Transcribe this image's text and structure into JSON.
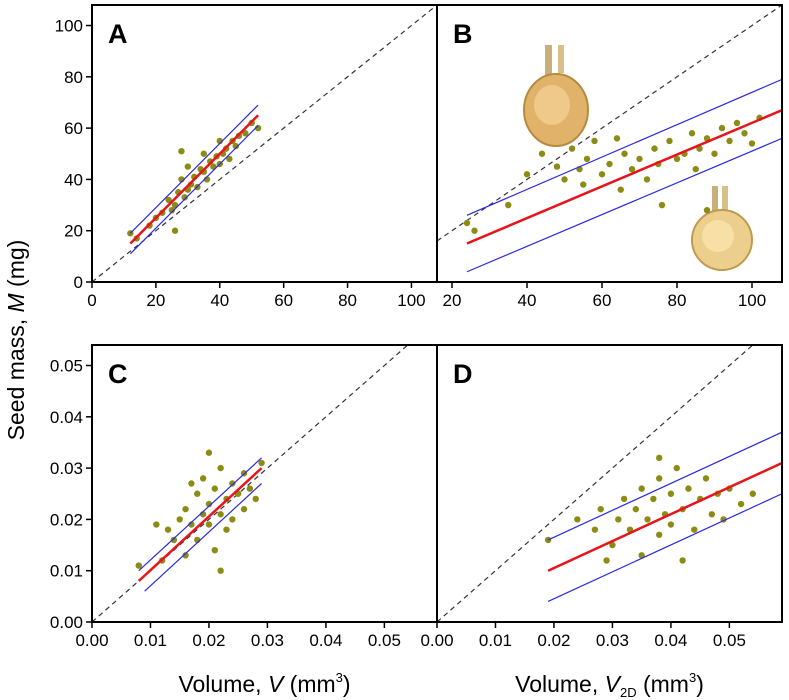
{
  "figure": {
    "ylabel": [
      "Seed mass, ",
      "M",
      " (mg)"
    ]
  },
  "chart_data": [
    {
      "type": "scatter",
      "title": "A",
      "xlim": [
        0,
        108
      ],
      "ylim": [
        0,
        108
      ],
      "xticks": [
        0,
        20,
        40,
        60,
        80,
        100
      ],
      "yticks": [
        0,
        20,
        40,
        60,
        80,
        100
      ],
      "color": "#8c8c14",
      "x": [
        12,
        14,
        18,
        20,
        22,
        24,
        25,
        26,
        27,
        28,
        28,
        29,
        30,
        31,
        32,
        33,
        34,
        35,
        36,
        37,
        38,
        39,
        40,
        41,
        42,
        43,
        44,
        45,
        46,
        48,
        50,
        52,
        30,
        26,
        35,
        40
      ],
      "values": [
        19,
        17,
        22,
        25,
        27,
        32,
        28,
        30,
        35,
        40,
        51,
        33,
        36,
        38,
        41,
        37,
        44,
        43,
        40,
        47,
        45,
        49,
        46,
        50,
        52,
        48,
        55,
        53,
        57,
        58,
        62,
        60,
        45,
        20,
        50,
        55
      ],
      "fit": {
        "color": "#e8141b",
        "x": [
          12,
          52
        ],
        "y": [
          15,
          65
        ]
      },
      "bounds": [
        {
          "color": "#2a2ae0",
          "x": [
            12,
            52
          ],
          "y": [
            19,
            69
          ]
        },
        {
          "color": "#2a2ae0",
          "x": [
            12,
            52
          ],
          "y": [
            11,
            61
          ]
        }
      ]
    },
    {
      "type": "scatter",
      "title": "B",
      "xlim": [
        16,
        108
      ],
      "ylim": [
        0,
        108
      ],
      "xticks": [
        20,
        40,
        60,
        80,
        100
      ],
      "color": "#8c8c14",
      "x": [
        24,
        26,
        35,
        40,
        44,
        48,
        50,
        52,
        55,
        56,
        58,
        60,
        62,
        65,
        66,
        68,
        70,
        72,
        74,
        75,
        78,
        80,
        82,
        84,
        85,
        86,
        88,
        90,
        92,
        94,
        96,
        98,
        100,
        102,
        76,
        88,
        64,
        54
      ],
      "values": [
        23,
        20,
        30,
        42,
        50,
        45,
        40,
        52,
        38,
        48,
        55,
        42,
        46,
        36,
        50,
        44,
        48,
        40,
        52,
        46,
        55,
        48,
        50,
        58,
        44,
        52,
        56,
        50,
        60,
        55,
        62,
        58,
        54,
        64,
        30,
        28,
        56,
        44
      ],
      "fit": {
        "color": "#e8141b",
        "x": [
          24,
          108
        ],
        "y": [
          15,
          67
        ]
      },
      "bounds": [
        {
          "color": "#2a2ae0",
          "x": [
            24,
            108
          ],
          "y": [
            26,
            79
          ]
        },
        {
          "color": "#2a2ae0",
          "x": [
            24,
            108
          ],
          "y": [
            4,
            56
          ]
        }
      ]
    },
    {
      "type": "scatter",
      "title": "C",
      "xlim": [
        0,
        0.059
      ],
      "ylim": [
        0,
        0.054
      ],
      "xticks": [
        {
          "value": 0,
          "label": "0.00"
        },
        {
          "value": 0.01,
          "label": "0.01"
        },
        {
          "value": 0.02,
          "label": "0.02"
        },
        {
          "value": 0.03,
          "label": "0.03"
        },
        {
          "value": 0.04,
          "label": "0.04"
        },
        {
          "value": 0.05,
          "label": "0.05"
        }
      ],
      "yticks": [
        {
          "value": 0,
          "label": "0.00"
        },
        {
          "value": 0.01,
          "label": "0.01"
        },
        {
          "value": 0.02,
          "label": "0.02"
        },
        {
          "value": 0.03,
          "label": "0.03"
        },
        {
          "value": 0.04,
          "label": "0.04"
        },
        {
          "value": 0.05,
          "label": "0.05"
        }
      ],
      "xlabel": [
        "Volume, ",
        "V",
        " (mm",
        "3",
        ")"
      ],
      "color": "#8c8c14",
      "x": [
        0.008,
        0.012,
        0.013,
        0.014,
        0.015,
        0.016,
        0.016,
        0.017,
        0.018,
        0.018,
        0.019,
        0.019,
        0.02,
        0.02,
        0.021,
        0.021,
        0.022,
        0.022,
        0.023,
        0.023,
        0.024,
        0.024,
        0.025,
        0.026,
        0.026,
        0.027,
        0.028,
        0.029,
        0.011,
        0.02,
        0.022,
        0.017
      ],
      "values": [
        0.011,
        0.012,
        0.018,
        0.016,
        0.02,
        0.013,
        0.022,
        0.019,
        0.025,
        0.016,
        0.021,
        0.028,
        0.019,
        0.023,
        0.014,
        0.026,
        0.021,
        0.03,
        0.024,
        0.018,
        0.027,
        0.02,
        0.025,
        0.029,
        0.022,
        0.026,
        0.024,
        0.031,
        0.019,
        0.033,
        0.01,
        0.027
      ],
      "fit": {
        "color": "#e8141b",
        "x": [
          0.008,
          0.029
        ],
        "y": [
          0.008,
          0.03
        ]
      },
      "bounds": [
        {
          "color": "#2a2ae0",
          "x": [
            0.008,
            0.029
          ],
          "y": [
            0.01,
            0.032
          ]
        },
        {
          "color": "#2a2ae0",
          "x": [
            0.009,
            0.029
          ],
          "y": [
            0.006,
            0.027
          ]
        }
      ]
    },
    {
      "type": "scatter",
      "title": "D",
      "xlim": [
        0,
        0.059
      ],
      "ylim": [
        0,
        0.054
      ],
      "xticks": [
        {
          "value": 0,
          "label": "0.00"
        },
        {
          "value": 0.01,
          "label": "0.01"
        },
        {
          "value": 0.02,
          "label": "0.02"
        },
        {
          "value": 0.03,
          "label": "0.03"
        },
        {
          "value": 0.04,
          "label": "0.04"
        },
        {
          "value": 0.05,
          "label": "0.05"
        }
      ],
      "xlabel": [
        "Volume, ",
        "V",
        "2D",
        " (mm",
        "3",
        ")"
      ],
      "color": "#8c8c14",
      "x": [
        0.019,
        0.024,
        0.027,
        0.028,
        0.03,
        0.031,
        0.032,
        0.033,
        0.034,
        0.035,
        0.035,
        0.036,
        0.037,
        0.038,
        0.038,
        0.039,
        0.04,
        0.04,
        0.041,
        0.042,
        0.043,
        0.044,
        0.045,
        0.046,
        0.047,
        0.048,
        0.049,
        0.05,
        0.052,
        0.054,
        0.038,
        0.042,
        0.029
      ],
      "values": [
        0.016,
        0.02,
        0.018,
        0.022,
        0.015,
        0.02,
        0.024,
        0.018,
        0.022,
        0.026,
        0.013,
        0.02,
        0.024,
        0.017,
        0.028,
        0.021,
        0.025,
        0.019,
        0.03,
        0.022,
        0.026,
        0.018,
        0.024,
        0.028,
        0.021,
        0.025,
        0.02,
        0.026,
        0.023,
        0.025,
        0.032,
        0.012,
        0.012
      ],
      "fit": {
        "color": "#e8141b",
        "x": [
          0.019,
          0.059
        ],
        "y": [
          0.01,
          0.031
        ]
      },
      "bounds": [
        {
          "color": "#2a2ae0",
          "x": [
            0.019,
            0.059
          ],
          "y": [
            0.016,
            0.037
          ]
        },
        {
          "color": "#2a2ae0",
          "x": [
            0.019,
            0.059
          ],
          "y": [
            0.004,
            0.025
          ]
        }
      ]
    }
  ]
}
